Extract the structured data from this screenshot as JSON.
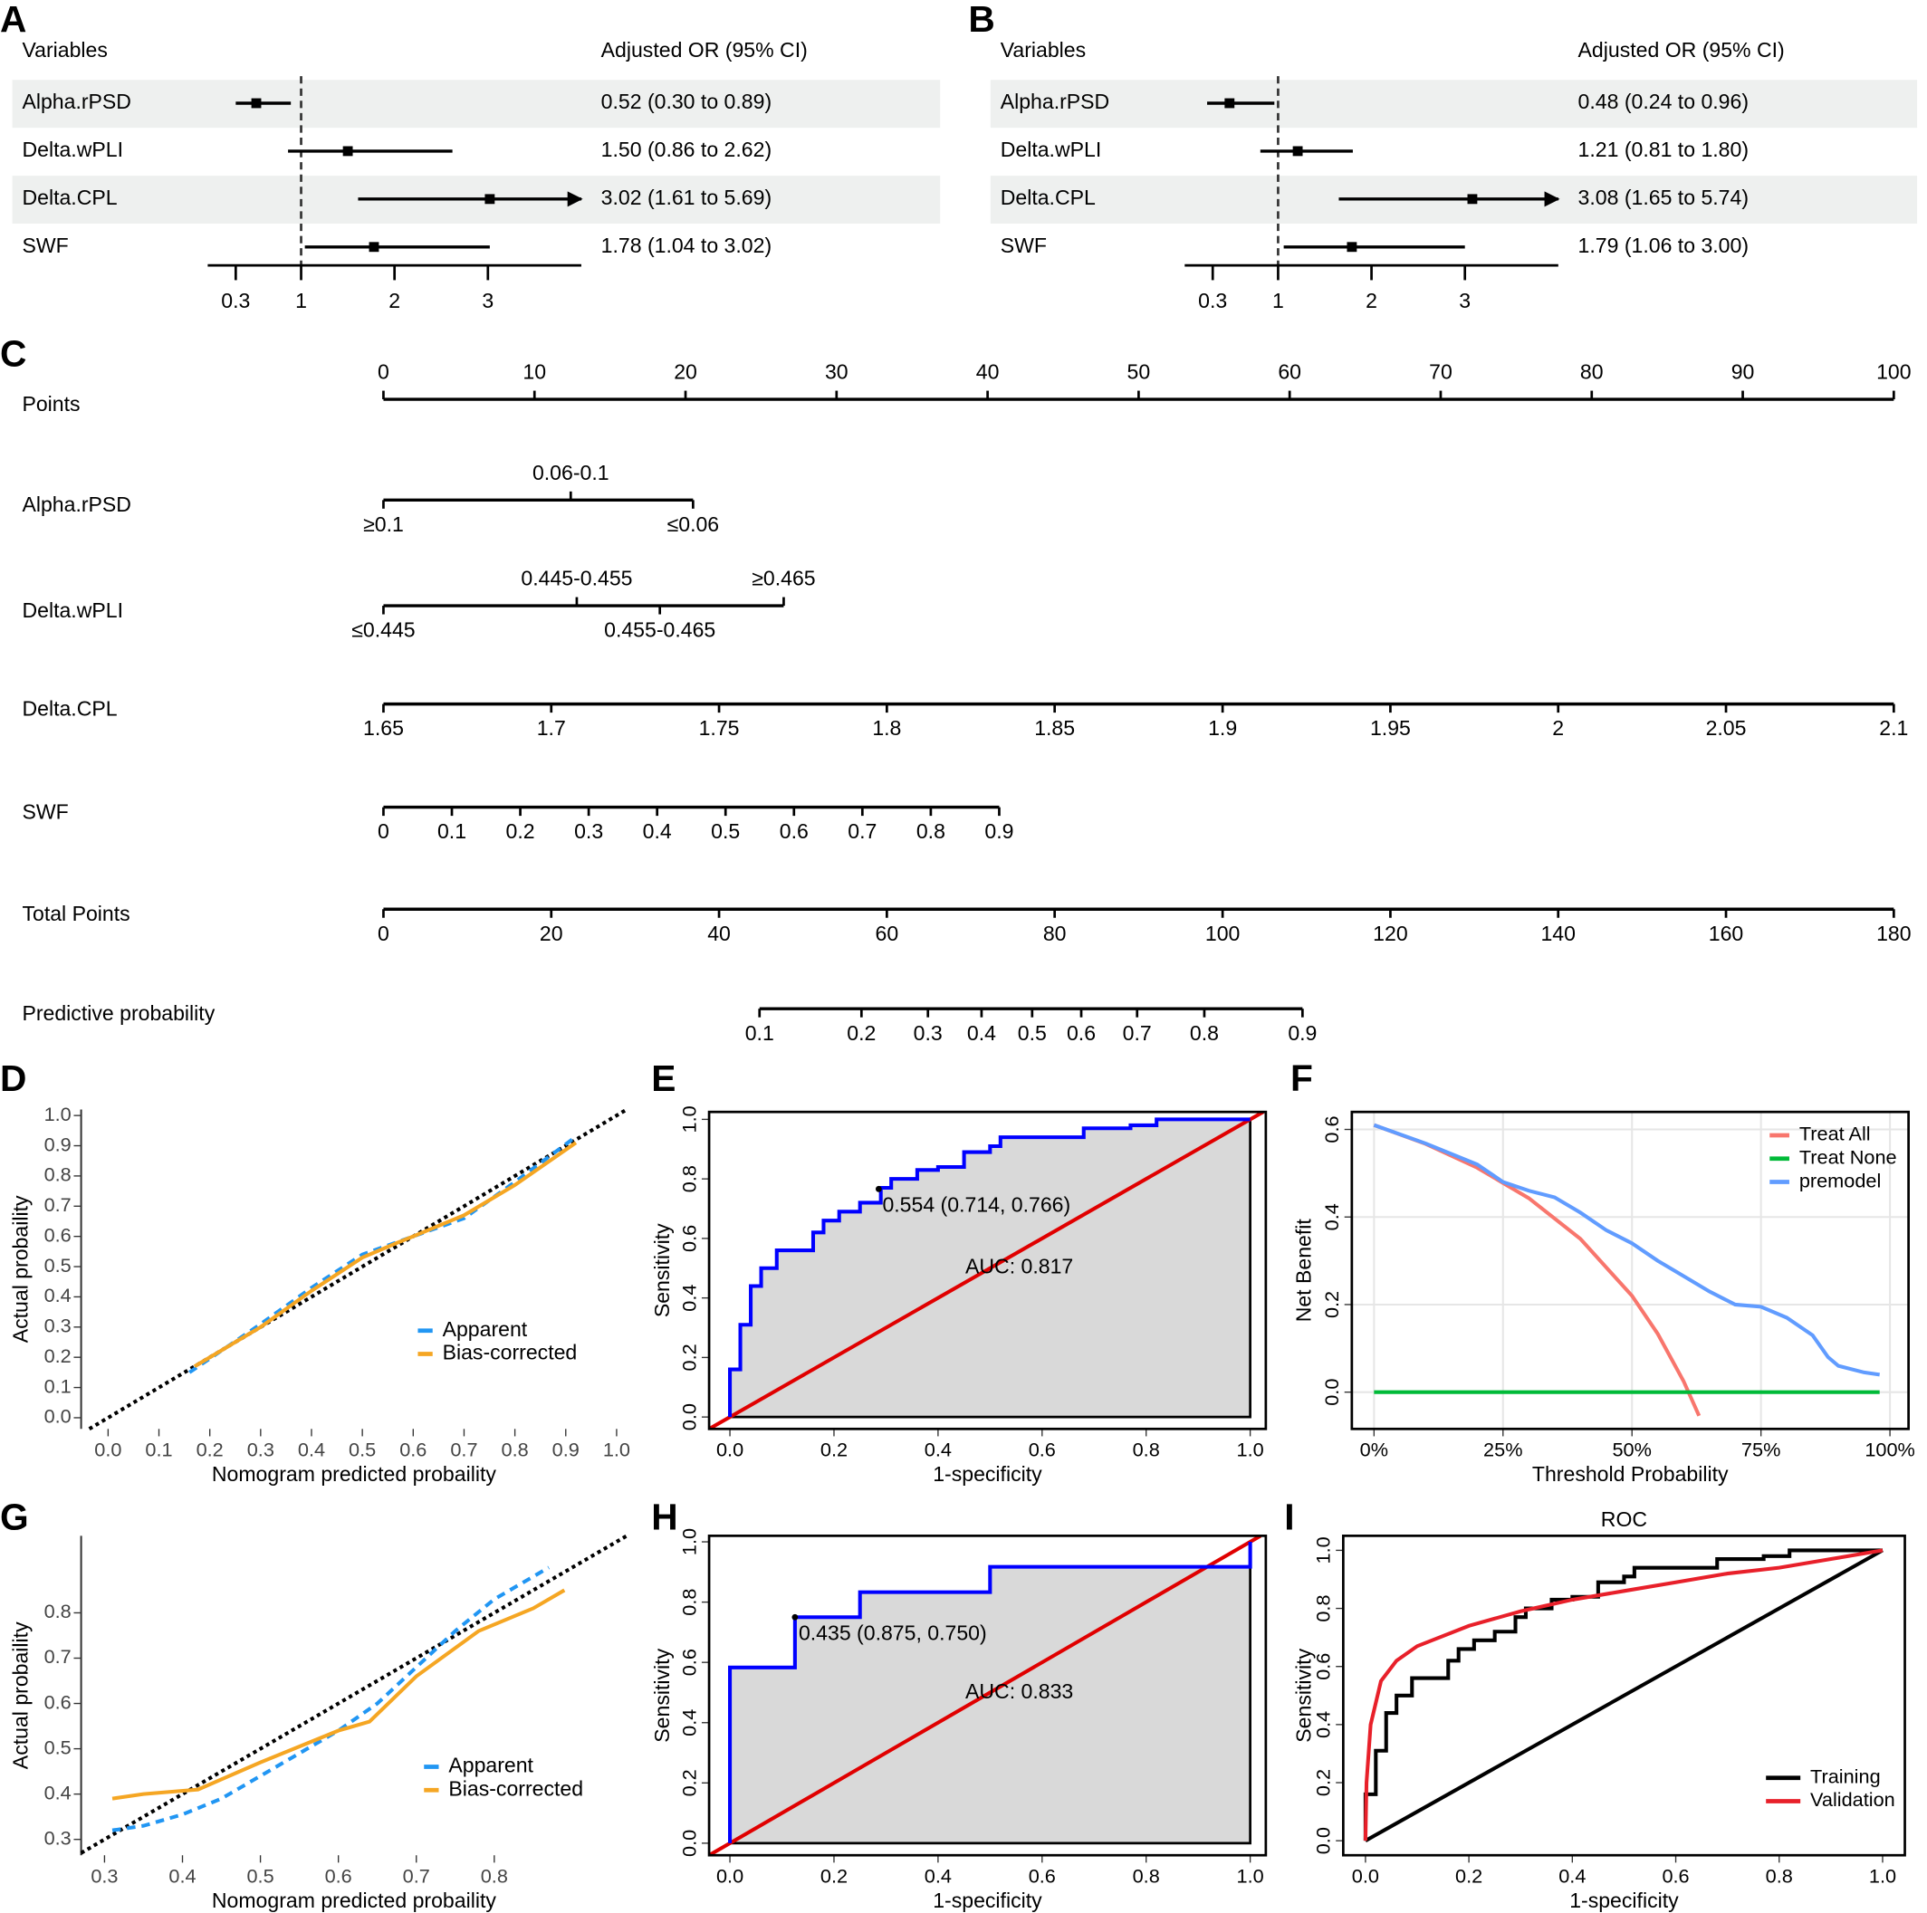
{
  "chart_data": [
    {
      "type": "forest",
      "panel": "A",
      "header": {
        "variable": "Variables",
        "estimate": "Adjusted OR (95% CI)"
      },
      "categories": [
        "Alpha.rPSD",
        "Delta.wPLI",
        "Delta.CPL",
        "SWF"
      ],
      "values": [
        0.52,
        1.5,
        3.02,
        1.78
      ],
      "lower": [
        0.3,
        0.86,
        1.61,
        1.04
      ],
      "upper": [
        0.89,
        2.62,
        5.69,
        3.02
      ],
      "value_labels": [
        "0.52 (0.30 to 0.89)",
        "1.50 (0.86 to 2.62)",
        "3.02 (1.61 to 5.69)",
        "1.78 (1.04 to 3.02)"
      ],
      "xlim": [
        0,
        4
      ],
      "xticks": [
        0.3,
        1,
        2,
        3
      ],
      "refline": 1,
      "shade": "#eef0ef"
    },
    {
      "type": "forest",
      "panel": "B",
      "header": {
        "variable": "Variables",
        "estimate": "Adjusted OR (95% CI)"
      },
      "categories": [
        "Alpha.rPSD",
        "Delta.wPLI",
        "Delta.CPL",
        "SWF"
      ],
      "values": [
        0.48,
        1.21,
        3.08,
        1.79
      ],
      "lower": [
        0.24,
        0.81,
        1.65,
        1.06
      ],
      "upper": [
        0.96,
        1.8,
        5.74,
        3.0
      ],
      "value_labels": [
        "0.48 (0.24 to 0.96)",
        "1.21 (0.81 to 1.80)",
        "3.08 (1.65 to 5.74)",
        "1.79 (1.06 to 3.00)"
      ],
      "xlim": [
        0,
        4
      ],
      "xticks": [
        0.3,
        1,
        2,
        3
      ],
      "refline": 1,
      "shade": "#eef0ef"
    },
    {
      "type": "nomogram",
      "panel": "C",
      "rows": [
        {
          "name": "Points",
          "ticks": [
            0,
            10,
            20,
            30,
            40,
            50,
            60,
            70,
            80,
            90,
            100
          ],
          "points": [
            0,
            10,
            20,
            30,
            40,
            50,
            60,
            70,
            80,
            90,
            100
          ],
          "label_side": "above"
        },
        {
          "name": "Alpha.rPSD",
          "ticks": [
            "≥0.1",
            "0.06-0.1",
            "≤0.06"
          ],
          "points": [
            0,
            12.4,
            20.5
          ],
          "sides": [
            "below",
            "above",
            "below"
          ]
        },
        {
          "name": "Delta.wPLI",
          "ticks": [
            "≤0.445",
            "0.445-0.455",
            "0.455-0.465",
            "≥0.465"
          ],
          "points": [
            0,
            12.8,
            18.3,
            26.5
          ],
          "sides": [
            "below",
            "above",
            "below",
            "above"
          ]
        },
        {
          "name": "Delta.CPL",
          "ticks": [
            1.65,
            1.7,
            1.75,
            1.8,
            1.85,
            1.9,
            1.95,
            2,
            2.05,
            2.1
          ],
          "points": [
            0,
            11.11,
            22.22,
            33.33,
            44.44,
            55.56,
            66.67,
            77.78,
            88.89,
            100
          ],
          "label_side": "below"
        },
        {
          "name": "SWF",
          "ticks": [
            0,
            0.1,
            0.2,
            0.3,
            0.4,
            0.5,
            0.6,
            0.7,
            0.8,
            0.9
          ],
          "points": [
            0,
            4.53,
            9.06,
            13.59,
            18.12,
            22.65,
            27.18,
            31.71,
            36.24,
            40.77
          ],
          "label_side": "below"
        },
        {
          "name": "Total Points",
          "ticks": [
            0,
            20,
            40,
            60,
            80,
            100,
            120,
            140,
            160,
            180
          ],
          "points": [
            0,
            11.11,
            22.22,
            33.33,
            44.44,
            55.56,
            66.67,
            77.78,
            88.89,
            100
          ],
          "label_side": "below"
        },
        {
          "name": "Predictive probability",
          "ticks": [
            0.1,
            0.2,
            0.3,
            0.4,
            0.5,
            0.6,
            0.7,
            0.8,
            0.9
          ],
          "points": [
            24.9,
            31.65,
            36.05,
            39.6,
            42.95,
            46.2,
            49.9,
            54.35,
            60.85
          ],
          "label_side": "below"
        }
      ]
    },
    {
      "type": "calibration",
      "panel": "D",
      "xlabel": "Nomogram predicted probaility",
      "ylabel": "Actual probaility",
      "xlim": [
        -0.053,
        1.02
      ],
      "ylim": [
        -0.037,
        1.02
      ],
      "xticks": [
        {
          "value": 0,
          "label": "0.0"
        },
        0.1,
        0.2,
        0.3,
        0.4,
        0.5,
        0.6,
        0.7,
        0.8,
        0.9,
        {
          "value": 1,
          "label": "1.0"
        }
      ],
      "yticks": [
        {
          "value": 0,
          "label": "0.0"
        },
        0.1,
        0.2,
        0.3,
        0.4,
        0.5,
        0.6,
        0.7,
        0.8,
        0.9,
        {
          "value": 1,
          "label": "1.0"
        }
      ],
      "ideal_line": true,
      "legend": "bottom-right",
      "series": [
        {
          "name": "Apparent",
          "color": "#2196f3",
          "dash": true,
          "x": [
            0.16,
            0.3,
            0.4,
            0.5,
            0.6,
            0.7,
            0.8,
            0.92
          ],
          "values": [
            0.15,
            0.31,
            0.43,
            0.54,
            0.6,
            0.66,
            0.78,
            0.93
          ]
        },
        {
          "name": "Bias-corrected",
          "color": "#f5a623",
          "dash": false,
          "x": [
            0.17,
            0.3,
            0.4,
            0.5,
            0.57,
            0.6,
            0.7,
            0.8,
            0.92
          ],
          "values": [
            0.17,
            0.3,
            0.42,
            0.53,
            0.58,
            0.6,
            0.67,
            0.77,
            0.91
          ]
        }
      ]
    },
    {
      "type": "roc",
      "panel": "E",
      "xlabel": "1-specificity",
      "ylabel": "Sensitivity",
      "xlim": [
        -0.04,
        1.03
      ],
      "ylim": [
        -0.04,
        1.025
      ],
      "xticks": [
        {
          "value": 0,
          "label": "0.0"
        },
        0.2,
        0.4,
        0.6,
        0.8,
        {
          "value": 1,
          "label": "1.0"
        }
      ],
      "yticks": [
        {
          "value": 0,
          "label": "0.0"
        },
        0.2,
        0.4,
        0.6,
        0.8,
        {
          "value": 1,
          "label": "1.0"
        }
      ],
      "fill": "#d9d9d9",
      "diagonal": "#e00000",
      "diagonal_span": "plot",
      "series": [
        {
          "color": "#0000ff",
          "x": [
            0,
            0,
            0.02,
            0.02,
            0.04,
            0.04,
            0.06,
            0.06,
            0.09,
            0.09,
            0.16,
            0.16,
            0.18,
            0.18,
            0.21,
            0.21,
            0.25,
            0.25,
            0.29,
            0.29,
            0.31,
            0.31,
            0.36,
            0.36,
            0.4,
            0.4,
            0.45,
            0.45,
            0.5,
            0.5,
            0.52,
            0.52,
            0.68,
            0.68,
            0.77,
            0.77,
            0.82,
            0.82,
            1
          ],
          "values": [
            0,
            0.16,
            0.16,
            0.31,
            0.31,
            0.44,
            0.44,
            0.5,
            0.5,
            0.56,
            0.56,
            0.62,
            0.62,
            0.66,
            0.66,
            0.69,
            0.69,
            0.72,
            0.72,
            0.77,
            0.77,
            0.8,
            0.8,
            0.83,
            0.83,
            0.84,
            0.84,
            0.89,
            0.89,
            0.91,
            0.91,
            0.94,
            0.94,
            0.97,
            0.97,
            0.98,
            0.98,
            1,
            1
          ]
        }
      ],
      "threshold": {
        "x": 0.286,
        "y": 0.766,
        "label": "0.554 (0.714, 0.766)"
      },
      "auc_label": "AUC: 0.817"
    },
    {
      "type": "line",
      "panel": "F",
      "xlabel": "Threshold Probability",
      "ylabel": "Net Benefit",
      "xlim": [
        -4.3,
        103.6
      ],
      "ylim": [
        -0.084,
        0.64
      ],
      "xticks": [
        {
          "value": 0,
          "label": "0%"
        },
        {
          "value": 25,
          "label": "25%"
        },
        {
          "value": 50,
          "label": "50%"
        },
        {
          "value": 75,
          "label": "75%"
        },
        {
          "value": 100,
          "label": "100%"
        }
      ],
      "yticks": [
        {
          "value": 0,
          "label": "0.0"
        },
        0.2,
        0.4,
        0.6
      ],
      "grid": true,
      "legend": "top-right",
      "series": [
        {
          "name": "Treat All",
          "color": "#f8766d",
          "x": [
            0,
            10,
            20,
            30,
            40,
            50,
            55,
            60,
            63
          ],
          "values": [
            0.61,
            0.567,
            0.5125,
            0.443,
            0.35,
            0.22,
            0.133,
            0.025,
            -0.054
          ]
        },
        {
          "name": "Treat None",
          "color": "#00ba38",
          "x": [
            0,
            98
          ],
          "values": [
            0,
            0
          ]
        },
        {
          "name": "premodel",
          "color": "#619cff",
          "x": [
            0,
            10,
            20,
            25,
            30,
            35,
            40,
            45,
            50,
            55,
            60,
            65,
            70,
            75,
            80,
            85,
            88,
            90,
            95,
            98
          ],
          "values": [
            0.61,
            0.568,
            0.52,
            0.48,
            0.46,
            0.445,
            0.41,
            0.37,
            0.34,
            0.3,
            0.265,
            0.23,
            0.2,
            0.195,
            0.17,
            0.13,
            0.08,
            0.06,
            0.045,
            0.04
          ]
        }
      ]
    },
    {
      "type": "calibration",
      "panel": "G",
      "xlabel": "Nomogram predicted probaility",
      "ylabel": "Actual probaility",
      "xlim": [
        0.27,
        0.97
      ],
      "ylim": [
        0.265,
        0.97
      ],
      "xticks": [
        0.3,
        0.4,
        0.5,
        0.6,
        0.7,
        0.8
      ],
      "yticks": [
        0.3,
        0.4,
        0.5,
        0.6,
        0.7,
        0.8
      ],
      "ideal_line": true,
      "legend": "bottom-right",
      "series": [
        {
          "name": "Apparent",
          "color": "#2196f3",
          "dash": true,
          "x": [
            0.31,
            0.35,
            0.4,
            0.45,
            0.5,
            0.6,
            0.65,
            0.7,
            0.75,
            0.8,
            0.87
          ],
          "values": [
            0.32,
            0.33,
            0.355,
            0.39,
            0.44,
            0.54,
            0.6,
            0.68,
            0.76,
            0.83,
            0.9
          ]
        },
        {
          "name": "Bias-corrected",
          "color": "#f5a623",
          "dash": false,
          "x": [
            0.31,
            0.35,
            0.42,
            0.5,
            0.6,
            0.64,
            0.7,
            0.78,
            0.85,
            0.89
          ],
          "values": [
            0.39,
            0.4,
            0.41,
            0.47,
            0.54,
            0.56,
            0.66,
            0.76,
            0.81,
            0.85
          ]
        }
      ]
    },
    {
      "type": "roc",
      "panel": "H",
      "xlabel": "1-specificity",
      "ylabel": "Sensitivity",
      "xlim": [
        -0.04,
        1.03
      ],
      "ylim": [
        -0.04,
        1.02
      ],
      "xticks": [
        {
          "value": 0,
          "label": "0.0"
        },
        0.2,
        0.4,
        0.6,
        0.8,
        {
          "value": 1,
          "label": "1.0"
        }
      ],
      "yticks": [
        {
          "value": 0,
          "label": "0.0"
        },
        0.2,
        0.4,
        0.6,
        0.8,
        {
          "value": 1,
          "label": "1.0"
        }
      ],
      "fill": "#d9d9d9",
      "diagonal": "#e00000",
      "diagonal_span": "plot",
      "series": [
        {
          "color": "#0000ff",
          "x": [
            0,
            0,
            0.125,
            0.125,
            0.25,
            0.25,
            0.5,
            0.5,
            1,
            1
          ],
          "values": [
            0,
            0.583,
            0.583,
            0.75,
            0.75,
            0.833,
            0.833,
            0.917,
            0.917,
            1
          ]
        }
      ],
      "threshold": {
        "x": 0.125,
        "y": 0.75,
        "label": "0.435 (0.875, 0.750)"
      },
      "auc_label": "AUC: 0.833"
    },
    {
      "type": "roc",
      "panel": "I",
      "title": "ROC",
      "xlabel": "1-specificity",
      "ylabel": "Sensitivity",
      "xlim": [
        -0.043,
        1.043
      ],
      "ylim": [
        -0.05,
        1.05
      ],
      "xticks": [
        {
          "value": 0,
          "label": "0.0"
        },
        0.2,
        0.4,
        0.6,
        0.8,
        {
          "value": 1,
          "label": "1.0"
        }
      ],
      "yticks": [
        {
          "value": 0,
          "label": "0.0"
        },
        0.2,
        0.4,
        0.6,
        0.8,
        {
          "value": 1,
          "label": "1.0"
        }
      ],
      "diagonal": "#000000",
      "diagonal_span": "data",
      "legend": "bottom-right",
      "series": [
        {
          "name": "Training",
          "color": "#000000",
          "x": [
            0,
            0,
            0.02,
            0.02,
            0.04,
            0.04,
            0.06,
            0.06,
            0.09,
            0.09,
            0.16,
            0.16,
            0.18,
            0.18,
            0.21,
            0.21,
            0.25,
            0.25,
            0.29,
            0.29,
            0.31,
            0.31,
            0.36,
            0.36,
            0.4,
            0.4,
            0.45,
            0.45,
            0.5,
            0.5,
            0.52,
            0.52,
            0.68,
            0.68,
            0.77,
            0.77,
            0.82,
            0.82,
            1
          ],
          "values": [
            0,
            0.16,
            0.16,
            0.31,
            0.31,
            0.44,
            0.44,
            0.5,
            0.5,
            0.56,
            0.56,
            0.62,
            0.62,
            0.66,
            0.66,
            0.69,
            0.69,
            0.72,
            0.72,
            0.77,
            0.77,
            0.8,
            0.8,
            0.83,
            0.83,
            0.84,
            0.84,
            0.89,
            0.89,
            0.91,
            0.91,
            0.94,
            0.94,
            0.97,
            0.97,
            0.98,
            0.98,
            1,
            1
          ]
        },
        {
          "name": "Validation",
          "color": "#e8202a",
          "x": [
            0,
            0.002,
            0.01,
            0.03,
            0.06,
            0.1,
            0.2,
            0.3,
            0.4,
            0.5,
            0.6,
            0.7,
            0.8,
            0.9,
            1
          ],
          "values": [
            0,
            0.2,
            0.4,
            0.55,
            0.62,
            0.67,
            0.74,
            0.79,
            0.83,
            0.86,
            0.89,
            0.92,
            0.94,
            0.97,
            1
          ]
        }
      ]
    }
  ]
}
